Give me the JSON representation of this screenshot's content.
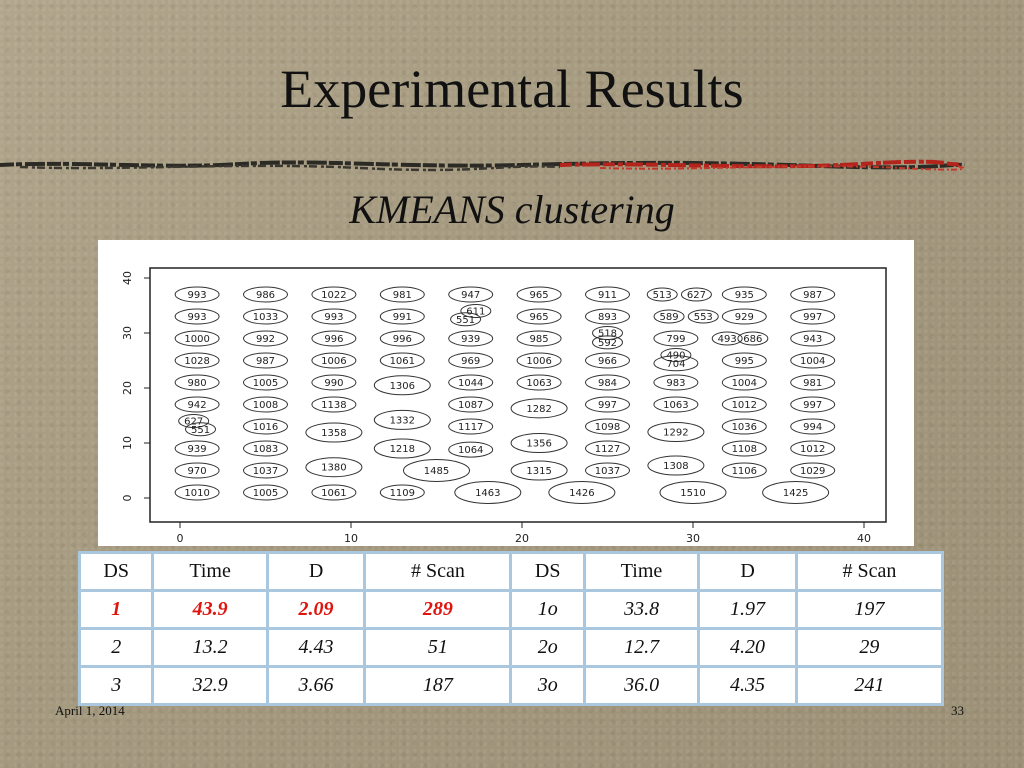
{
  "slide": {
    "title": "Experimental Results",
    "subtitle": "KMEANS clustering",
    "date": "April 1, 2014",
    "page_number": "33"
  },
  "plot": {
    "x_ticks": [
      "0",
      "10",
      "20",
      "30",
      "40"
    ],
    "y_ticks": [
      "0",
      "10",
      "20",
      "30",
      "40"
    ],
    "clusters": [
      {
        "label": "993",
        "x": 1,
        "y": 37
      },
      {
        "label": "986",
        "x": 5,
        "y": 37
      },
      {
        "label": "1022",
        "x": 9,
        "y": 37
      },
      {
        "label": "981",
        "x": 13,
        "y": 37
      },
      {
        "label": "947",
        "x": 17,
        "y": 37
      },
      {
        "label": "965",
        "x": 21,
        "y": 37
      },
      {
        "label": "911",
        "x": 25,
        "y": 37
      },
      {
        "label": "513",
        "x": 28.2,
        "y": 37
      },
      {
        "label": "627",
        "x": 30.2,
        "y": 37
      },
      {
        "label": "935",
        "x": 33,
        "y": 37
      },
      {
        "label": "987",
        "x": 37,
        "y": 37
      },
      {
        "label": "993",
        "x": 1,
        "y": 33
      },
      {
        "label": "1033",
        "x": 5,
        "y": 33
      },
      {
        "label": "993",
        "x": 9,
        "y": 33
      },
      {
        "label": "991",
        "x": 13,
        "y": 33
      },
      {
        "label": "611",
        "x": 17.3,
        "y": 34
      },
      {
        "label": "551",
        "x": 16.7,
        "y": 32.5
      },
      {
        "label": "965",
        "x": 21,
        "y": 33
      },
      {
        "label": "893",
        "x": 25,
        "y": 33
      },
      {
        "label": "589",
        "x": 28.6,
        "y": 33
      },
      {
        "label": "553",
        "x": 30.6,
        "y": 33
      },
      {
        "label": "929",
        "x": 33,
        "y": 33
      },
      {
        "label": "997",
        "x": 37,
        "y": 33
      },
      {
        "label": "1000",
        "x": 1,
        "y": 29
      },
      {
        "label": "992",
        "x": 5,
        "y": 29
      },
      {
        "label": "996",
        "x": 9,
        "y": 29
      },
      {
        "label": "996",
        "x": 13,
        "y": 29
      },
      {
        "label": "939",
        "x": 17,
        "y": 29
      },
      {
        "label": "985",
        "x": 21,
        "y": 29
      },
      {
        "label": "518",
        "x": 25,
        "y": 30
      },
      {
        "label": "592",
        "x": 25,
        "y": 28.3
      },
      {
        "label": "799",
        "x": 29,
        "y": 29
      },
      {
        "label": "493",
        "x": 32,
        "y": 29
      },
      {
        "label": "686",
        "x": 33.5,
        "y": 29
      },
      {
        "label": "943",
        "x": 37,
        "y": 29
      },
      {
        "label": "1028",
        "x": 1,
        "y": 25
      },
      {
        "label": "987",
        "x": 5,
        "y": 25
      },
      {
        "label": "1006",
        "x": 9,
        "y": 25
      },
      {
        "label": "1061",
        "x": 13,
        "y": 25
      },
      {
        "label": "969",
        "x": 17,
        "y": 25
      },
      {
        "label": "1006",
        "x": 21,
        "y": 25
      },
      {
        "label": "966",
        "x": 25,
        "y": 25
      },
      {
        "label": "490",
        "x": 29,
        "y": 26
      },
      {
        "label": "704",
        "x": 29,
        "y": 24.5
      },
      {
        "label": "995",
        "x": 33,
        "y": 25
      },
      {
        "label": "1004",
        "x": 37,
        "y": 25
      },
      {
        "label": "980",
        "x": 1,
        "y": 21
      },
      {
        "label": "1005",
        "x": 5,
        "y": 21
      },
      {
        "label": "990",
        "x": 9,
        "y": 21
      },
      {
        "label": "1306",
        "x": 13,
        "y": 20.5
      },
      {
        "label": "1044",
        "x": 17,
        "y": 21
      },
      {
        "label": "1063",
        "x": 21,
        "y": 21
      },
      {
        "label": "984",
        "x": 25,
        "y": 21
      },
      {
        "label": "983",
        "x": 29,
        "y": 21
      },
      {
        "label": "1004",
        "x": 33,
        "y": 21
      },
      {
        "label": "981",
        "x": 37,
        "y": 21
      },
      {
        "label": "942",
        "x": 1,
        "y": 17
      },
      {
        "label": "1008",
        "x": 5,
        "y": 17
      },
      {
        "label": "1138",
        "x": 9,
        "y": 17
      },
      {
        "label": "1332",
        "x": 13,
        "y": 14.2
      },
      {
        "label": "1087",
        "x": 17,
        "y": 17
      },
      {
        "label": "1282",
        "x": 21,
        "y": 16.3
      },
      {
        "label": "997",
        "x": 25,
        "y": 17
      },
      {
        "label": "1063",
        "x": 29,
        "y": 17
      },
      {
        "label": "1012",
        "x": 33,
        "y": 17
      },
      {
        "label": "997",
        "x": 37,
        "y": 17
      },
      {
        "label": "627",
        "x": 0.8,
        "y": 14
      },
      {
        "label": "551",
        "x": 1.2,
        "y": 12.5
      },
      {
        "label": "1016",
        "x": 5,
        "y": 13
      },
      {
        "label": "1358",
        "x": 9,
        "y": 11.9
      },
      {
        "label": "1117",
        "x": 17,
        "y": 13
      },
      {
        "label": "1098",
        "x": 25,
        "y": 13
      },
      {
        "label": "1292",
        "x": 29,
        "y": 12
      },
      {
        "label": "1036",
        "x": 33,
        "y": 13
      },
      {
        "label": "994",
        "x": 37,
        "y": 13
      },
      {
        "label": "939",
        "x": 1,
        "y": 9
      },
      {
        "label": "1083",
        "x": 5,
        "y": 9
      },
      {
        "label": "1218",
        "x": 13,
        "y": 9
      },
      {
        "label": "1064",
        "x": 17,
        "y": 8.8
      },
      {
        "label": "1356",
        "x": 21,
        "y": 10
      },
      {
        "label": "1127",
        "x": 25,
        "y": 9
      },
      {
        "label": "1108",
        "x": 33,
        "y": 9
      },
      {
        "label": "1012",
        "x": 37,
        "y": 9
      },
      {
        "label": "970",
        "x": 1,
        "y": 5
      },
      {
        "label": "1037",
        "x": 5,
        "y": 5
      },
      {
        "label": "1380",
        "x": 9,
        "y": 5.6
      },
      {
        "label": "1485",
        "x": 15,
        "y": 5
      },
      {
        "label": "1315",
        "x": 21,
        "y": 5
      },
      {
        "label": "1037",
        "x": 25,
        "y": 5
      },
      {
        "label": "1308",
        "x": 29,
        "y": 5.9
      },
      {
        "label": "1106",
        "x": 33,
        "y": 5
      },
      {
        "label": "1029",
        "x": 37,
        "y": 5
      },
      {
        "label": "1010",
        "x": 1,
        "y": 1
      },
      {
        "label": "1005",
        "x": 5,
        "y": 1
      },
      {
        "label": "1061",
        "x": 9,
        "y": 1
      },
      {
        "label": "1109",
        "x": 13,
        "y": 1
      },
      {
        "label": "1463",
        "x": 18,
        "y": 1
      },
      {
        "label": "1426",
        "x": 23.5,
        "y": 1
      },
      {
        "label": "1510",
        "x": 30,
        "y": 1
      },
      {
        "label": "1425",
        "x": 36,
        "y": 1
      }
    ]
  },
  "table": {
    "headers": [
      "DS",
      "Time",
      "D",
      "# Scan",
      "DS",
      "Time",
      "D",
      "# Scan"
    ],
    "rows": [
      [
        "1",
        "43.9",
        "2.09",
        "289",
        "1o",
        "33.8",
        "1.97",
        "197"
      ],
      [
        "2",
        "13.2",
        "4.43",
        "51",
        "2o",
        "12.7",
        "4.20",
        "29"
      ],
      [
        "3",
        "32.9",
        "3.66",
        "187",
        "3o",
        "36.0",
        "4.35",
        "241"
      ]
    ],
    "highlight_color": "#e0140e",
    "border_color": "#a9c8e0"
  }
}
